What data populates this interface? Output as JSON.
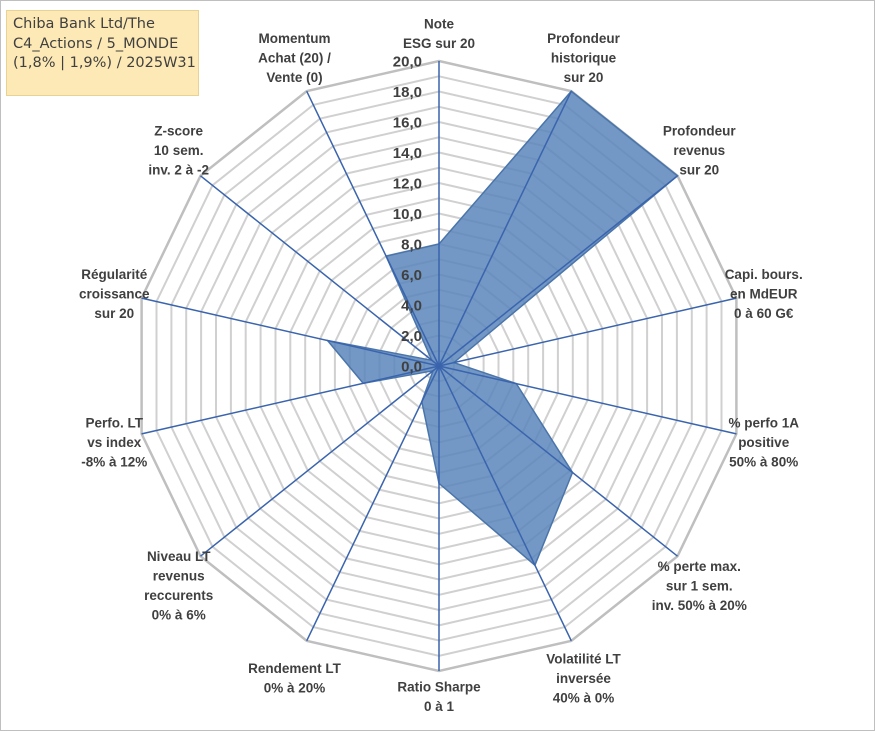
{
  "title_box": {
    "lines": [
      "Chiba Bank Ltd/The",
      "C4_Actions / 5_MONDE",
      "(1,8% | 1,9%) / 2025W31"
    ]
  },
  "chart_data": {
    "type": "radar",
    "axes": [
      {
        "label": [
          "Note",
          "ESG sur 20"
        ],
        "value": 8.0
      },
      {
        "label": [
          "Profondeur",
          "historique",
          "sur 20"
        ],
        "value": 20.0
      },
      {
        "label": [
          "Profondeur",
          "revenus",
          "sur 20"
        ],
        "value": 20.0
      },
      {
        "label": [
          "Capi. bours.",
          "en MdEUR",
          "0 à 60 G€"
        ],
        "value": 1.0
      },
      {
        "label": [
          "% perfo 1A",
          "positive",
          "50% à 80%"
        ],
        "value": 5.2
      },
      {
        "label": [
          "% perte max.",
          "sur 1 sem.",
          "inv. 50% à 20%"
        ],
        "value": 11.2
      },
      {
        "label": [
          "Volatilité LT",
          "inversée",
          "40% à 0%"
        ],
        "value": 14.5
      },
      {
        "label": [
          "Ratio Sharpe",
          "0 à 1"
        ],
        "value": 7.7
      },
      {
        "label": [
          "Rendement LT",
          "0% à 20%"
        ],
        "value": 2.6
      },
      {
        "label": [
          "Niveau LT",
          "revenus",
          "reccurents",
          "0% à 6%"
        ],
        "value": 0.5
      },
      {
        "label": [
          "Perfo. LT",
          "vs index",
          "-8% à 12%"
        ],
        "value": 5.1
      },
      {
        "label": [
          "Régularité",
          "croissance",
          "sur 20"
        ],
        "value": 7.5
      },
      {
        "label": [
          "Z-score",
          "10 sem.",
          "inv. 2 à -2"
        ],
        "value": 0.6
      },
      {
        "label": [
          "Momentum",
          "Achat (20) /",
          "Vente (0)"
        ],
        "value": 8.0
      }
    ],
    "r_ticks": [
      "0,0",
      "2,0",
      "4,0",
      "6,0",
      "8,0",
      "10,0",
      "12,0",
      "14,0",
      "16,0",
      "18,0",
      "20,0"
    ],
    "r_min": 0,
    "r_max": 20,
    "grid": true,
    "colors": {
      "fill": "#5b86bb",
      "outline": "#4a75aa",
      "spoke": "#3a64ad",
      "grid": "#d0d0d0",
      "outer_grid": "#bfbfbf"
    }
  }
}
